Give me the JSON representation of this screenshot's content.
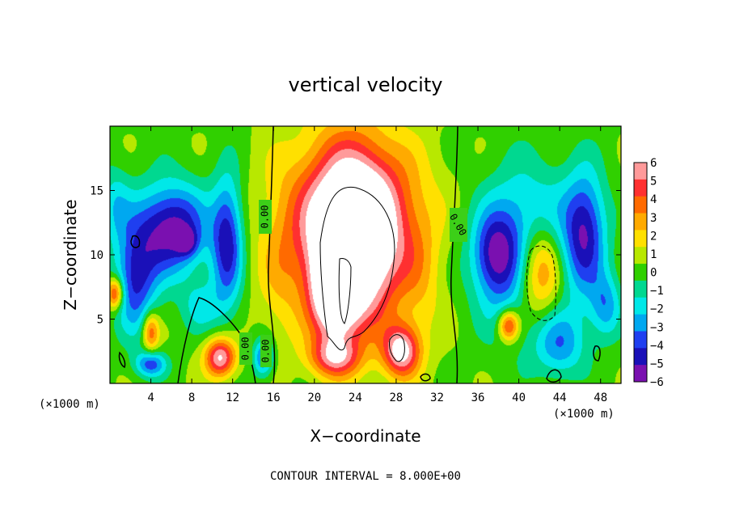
{
  "chart_data": {
    "type": "heatmap",
    "title": "vertical velocity",
    "xlabel": "X−coordinate",
    "ylabel": "Z−coordinate",
    "x_unit_left": "(×1000 m)",
    "x_unit_right": "(×1000 m)",
    "xlim": [
      0,
      50
    ],
    "ylim": [
      0,
      20
    ],
    "xticks": [
      "4",
      "8",
      "12",
      "16",
      "20",
      "24",
      "28",
      "32",
      "36",
      "40",
      "44",
      "48"
    ],
    "yticks": [
      "5",
      "10",
      "15"
    ],
    "colorbar": {
      "ticks": [
        "6",
        "5",
        "4",
        "3",
        "2",
        "1",
        "0",
        "−1",
        "−2",
        "−3",
        "−4",
        "−5",
        "−6"
      ],
      "range": [
        -6,
        6
      ],
      "colors": [
        "#ff9a9a",
        "#ff3030",
        "#ff6a00",
        "#ffaa00",
        "#ffe000",
        "#b8e800",
        "#30d000",
        "#00d890",
        "#00e8e8",
        "#00a8f0",
        "#1f3ff0",
        "#1a10b8",
        "#7a10b0"
      ]
    },
    "contour_labels": [
      "0.00",
      "0.00",
      "0.00",
      "0.00"
    ],
    "note": "CONTOUR INTERVAL = 8.000E+00",
    "features": [
      {
        "x": 24.0,
        "y": 11.0,
        "w": 6.0,
        "sx": 4.0,
        "sy": 6.5
      },
      {
        "x": 23.5,
        "y": 12.5,
        "w": 6.0,
        "sx": 6.5,
        "sy": 6.5
      },
      {
        "x": 22.0,
        "y": 7.0,
        "w": 6.0,
        "sx": 2.2,
        "sy": 4.0
      },
      {
        "x": 28.5,
        "y": 2.5,
        "w": 6.0,
        "sx": 1.8,
        "sy": 2.0
      },
      {
        "x": 22.0,
        "y": 2.0,
        "w": 4.0,
        "sx": 2.5,
        "sy": 1.5
      },
      {
        "x": 42.0,
        "y": 9.0,
        "w": 8.0,
        "sx": 2.5,
        "sy": 4.0
      },
      {
        "x": 39.0,
        "y": 4.5,
        "w": 5.0,
        "sx": 1.0,
        "sy": 1.2
      },
      {
        "x": 10.8,
        "y": 2.0,
        "w": 6.0,
        "sx": 1.5,
        "sy": 1.5
      },
      {
        "x": 4.0,
        "y": 4.0,
        "w": 4.0,
        "sx": 0.8,
        "sy": 1.5
      },
      {
        "x": 0.5,
        "y": 7.0,
        "w": 5.0,
        "sx": 0.8,
        "sy": 1.2
      },
      {
        "x": 6.0,
        "y": 12.0,
        "w": -6.0,
        "sx": 3.5,
        "sy": 3.5
      },
      {
        "x": 2.5,
        "y": 8.0,
        "w": -4.5,
        "sx": 2.0,
        "sy": 4.0
      },
      {
        "x": 7.5,
        "y": 11.0,
        "w": -3.0,
        "sx": 1.0,
        "sy": 1.0
      },
      {
        "x": 11.5,
        "y": 11.0,
        "w": -5.0,
        "sx": 1.5,
        "sy": 5.0
      },
      {
        "x": 15.0,
        "y": 2.0,
        "w": -4.0,
        "sx": 1.0,
        "sy": 1.5
      },
      {
        "x": 4.0,
        "y": 1.5,
        "w": -4.0,
        "sx": 1.5,
        "sy": 1.0
      },
      {
        "x": 9.0,
        "y": 6.0,
        "w": -2.0,
        "sx": 2.0,
        "sy": 2.0
      },
      {
        "x": 41.0,
        "y": 10.0,
        "w": -6.5,
        "sx": 4.5,
        "sy": 5.5
      },
      {
        "x": 46.5,
        "y": 12.0,
        "w": -4.5,
        "sx": 2.0,
        "sy": 4.5
      },
      {
        "x": 37.5,
        "y": 10.0,
        "w": -3.0,
        "sx": 2.0,
        "sy": 3.0
      },
      {
        "x": 44.0,
        "y": 3.0,
        "w": -3.0,
        "sx": 2.5,
        "sy": 2.5
      },
      {
        "x": 0.5,
        "y": 14.0,
        "w": -2.0,
        "sx": 1.5,
        "sy": 3.0
      },
      {
        "x": 48.5,
        "y": 6.0,
        "w": -3.0,
        "sx": 1.5,
        "sy": 2.5
      },
      {
        "x": 16.5,
        "y": 8.0,
        "w": 1.0,
        "sx": 2.0,
        "sy": 6.0
      },
      {
        "x": 30.5,
        "y": 8.0,
        "w": 1.0,
        "sx": 2.0,
        "sy": 6.0
      }
    ]
  }
}
